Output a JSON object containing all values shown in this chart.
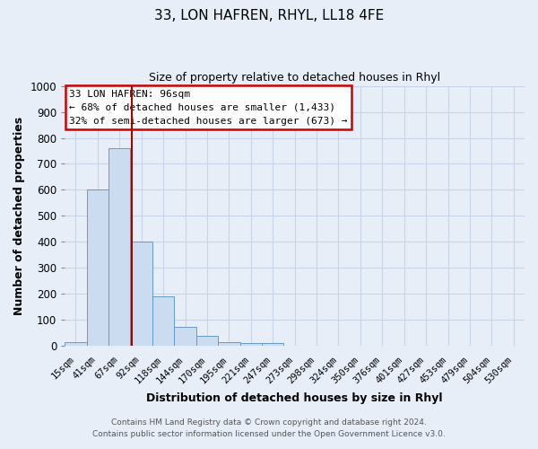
{
  "title": "33, LON HAFREN, RHYL, LL18 4FE",
  "subtitle": "Size of property relative to detached houses in Rhyl",
  "xlabel": "Distribution of detached houses by size in Rhyl",
  "ylabel": "Number of detached properties",
  "footer_line1": "Contains HM Land Registry data © Crown copyright and database right 2024.",
  "footer_line2": "Contains public sector information licensed under the Open Government Licence v3.0.",
  "bar_labels": [
    "15sqm",
    "41sqm",
    "67sqm",
    "92sqm",
    "118sqm",
    "144sqm",
    "170sqm",
    "195sqm",
    "221sqm",
    "247sqm",
    "273sqm",
    "298sqm",
    "324sqm",
    "350sqm",
    "376sqm",
    "401sqm",
    "427sqm",
    "453sqm",
    "479sqm",
    "504sqm",
    "530sqm"
  ],
  "bar_values": [
    15,
    600,
    760,
    400,
    190,
    75,
    40,
    15,
    12,
    12,
    0,
    0,
    0,
    0,
    0,
    0,
    0,
    0,
    0,
    0,
    0
  ],
  "bar_color": "#ccdcf0",
  "bar_edgecolor": "#6699cc",
  "vline_color": "#aa0000",
  "vline_pos": 2.58,
  "ylim": [
    0,
    1000
  ],
  "yticks": [
    0,
    100,
    200,
    300,
    400,
    500,
    600,
    700,
    800,
    900,
    1000
  ],
  "annotation_title": "33 LON HAFREN: 96sqm",
  "annotation_line1": "← 68% of detached houses are smaller (1,433)",
  "annotation_line2": "32% of semi-detached houses are larger (673) →",
  "annotation_box_facecolor": "#ffffff",
  "annotation_box_edgecolor": "#cc0000",
  "grid_color": "#c8d4e8",
  "bg_color": "#e8eef8",
  "plot_bg_color": "#e8eef8"
}
